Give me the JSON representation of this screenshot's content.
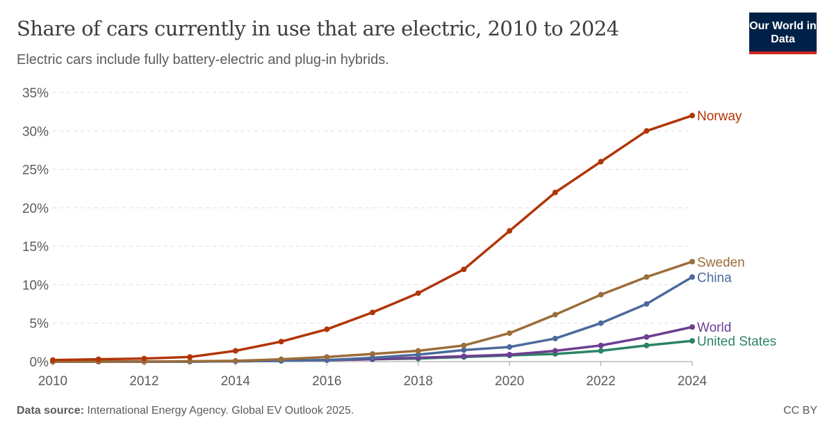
{
  "header": {
    "title": "Share of cars currently in use that are electric, 2010 to 2024",
    "subtitle": "Electric cars include fully battery-electric and plug-in hybrids.",
    "logo": "Our World in Data"
  },
  "footer": {
    "source_label": "Data source:",
    "source_text": "International Energy Agency. Global EV Outlook 2025.",
    "license": "CC BY"
  },
  "chart_data": {
    "type": "line",
    "title": "Share of cars currently in use that are electric, 2010 to 2024",
    "subtitle": "Electric cars include fully battery-electric and plug-in hybrids.",
    "x": [
      2010,
      2011,
      2012,
      2013,
      2014,
      2015,
      2016,
      2017,
      2018,
      2019,
      2020,
      2021,
      2022,
      2023,
      2024
    ],
    "xticks": [
      "2010",
      "2012",
      "2014",
      "2016",
      "2018",
      "2020",
      "2022",
      "2024"
    ],
    "yticks": [
      "0%",
      "5%",
      "10%",
      "15%",
      "20%",
      "25%",
      "30%",
      "35%"
    ],
    "ylim": [
      0,
      35
    ],
    "grid": "horizontal dashed",
    "legend": "inline labels at line ends (right)",
    "series": [
      {
        "name": "Norway",
        "color": "#b13507",
        "values": [
          0.2,
          0.3,
          0.4,
          0.6,
          1.4,
          2.6,
          4.2,
          6.4,
          8.9,
          12,
          17,
          22,
          26,
          30,
          32
        ]
      },
      {
        "name": "Sweden",
        "color": "#9a6d3a",
        "values": [
          0,
          0,
          0,
          0.05,
          0.1,
          0.3,
          0.6,
          1.0,
          1.4,
          2.1,
          3.7,
          6.1,
          8.7,
          11,
          13
        ]
      },
      {
        "name": "China",
        "color": "#4c6a9c",
        "values": [
          0,
          0,
          0,
          0,
          0.05,
          0.1,
          0.2,
          0.5,
          0.9,
          1.5,
          1.9,
          3.0,
          5.0,
          7.5,
          11
        ]
      },
      {
        "name": "World",
        "color": "#6d3e91",
        "values": [
          0,
          0,
          0,
          0,
          0.05,
          0.1,
          0.2,
          0.3,
          0.5,
          0.7,
          0.9,
          1.4,
          2.1,
          3.2,
          4.5
        ]
      },
      {
        "name": "United States",
        "color": "#2c8465",
        "values": [
          0,
          0,
          0,
          0,
          0.05,
          0.1,
          0.2,
          0.3,
          0.4,
          0.6,
          0.8,
          1.0,
          1.4,
          2.1,
          2.7
        ]
      }
    ]
  }
}
